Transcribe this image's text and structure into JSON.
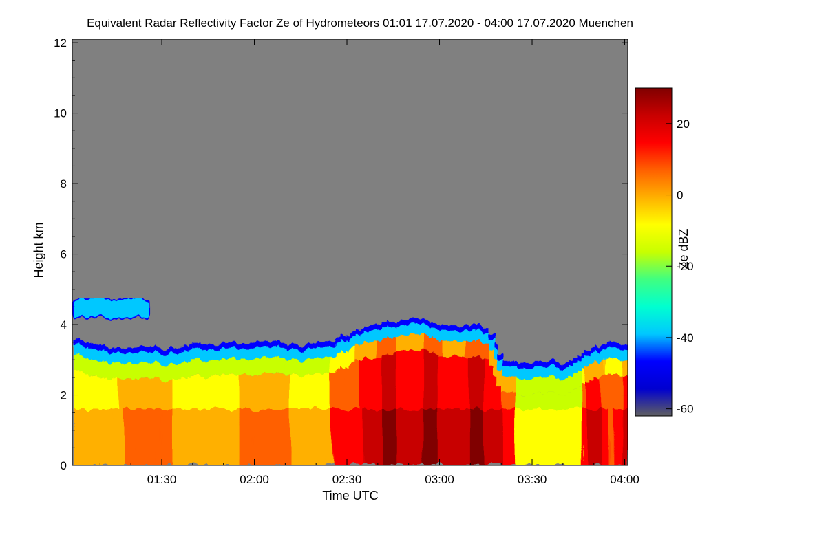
{
  "chart_data": {
    "type": "heatmap",
    "title": "Equivalent Radar Reflectivity Factor Ze of Hydrometeors   01:01 17.07.2020 - 04:00 17.07.2020 Muenchen",
    "xlabel": "Time UTC",
    "ylabel": "Height km",
    "x_ticks": [
      "01:30",
      "02:00",
      "02:30",
      "03:00",
      "03:30",
      "04:00"
    ],
    "x_tick_minutes": [
      90,
      120,
      150,
      180,
      210,
      240
    ],
    "xlim_minutes": [
      61,
      241
    ],
    "y_ticks": [
      0,
      2,
      4,
      6,
      8,
      10,
      12
    ],
    "ylim": [
      0,
      12.1
    ],
    "colorbar": {
      "label": "Ze dBZ",
      "ticks": [
        20,
        0,
        -20,
        -40,
        -60
      ],
      "range": [
        -62,
        30
      ],
      "colors": [
        "#606060",
        "#0000d0",
        "#0000ff",
        "#00c8ff",
        "#00ffd0",
        "#40ff80",
        "#c8ff00",
        "#ffff00",
        "#ffb000",
        "#ff6000",
        "#ff0000",
        "#c80000",
        "#800000"
      ]
    },
    "background_color": "#808080",
    "echo_top_profile_km": [
      [
        61,
        3.6
      ],
      [
        65,
        3.5
      ],
      [
        70,
        3.4
      ],
      [
        75,
        3.3
      ],
      [
        80,
        3.35
      ],
      [
        85,
        3.4
      ],
      [
        90,
        3.3
      ],
      [
        95,
        3.35
      ],
      [
        100,
        3.5
      ],
      [
        105,
        3.4
      ],
      [
        110,
        3.5
      ],
      [
        115,
        3.45
      ],
      [
        120,
        3.5
      ],
      [
        125,
        3.55
      ],
      [
        130,
        3.45
      ],
      [
        135,
        3.4
      ],
      [
        140,
        3.5
      ],
      [
        145,
        3.55
      ],
      [
        150,
        3.75
      ],
      [
        155,
        3.95
      ],
      [
        160,
        4.0
      ],
      [
        165,
        4.1
      ],
      [
        170,
        4.2
      ],
      [
        175,
        4.15
      ],
      [
        180,
        4.0
      ],
      [
        185,
        3.95
      ],
      [
        190,
        4.0
      ],
      [
        195,
        3.9
      ],
      [
        200,
        3.0
      ],
      [
        205,
        2.9
      ],
      [
        210,
        2.95
      ],
      [
        215,
        3.0
      ],
      [
        220,
        2.9
      ],
      [
        225,
        3.1
      ],
      [
        230,
        3.4
      ],
      [
        235,
        3.5
      ],
      [
        241,
        3.4
      ]
    ],
    "elevated_layer_km": {
      "start_min": 61,
      "end_min": 86,
      "base": 4.2,
      "top": 4.75
    }
  }
}
